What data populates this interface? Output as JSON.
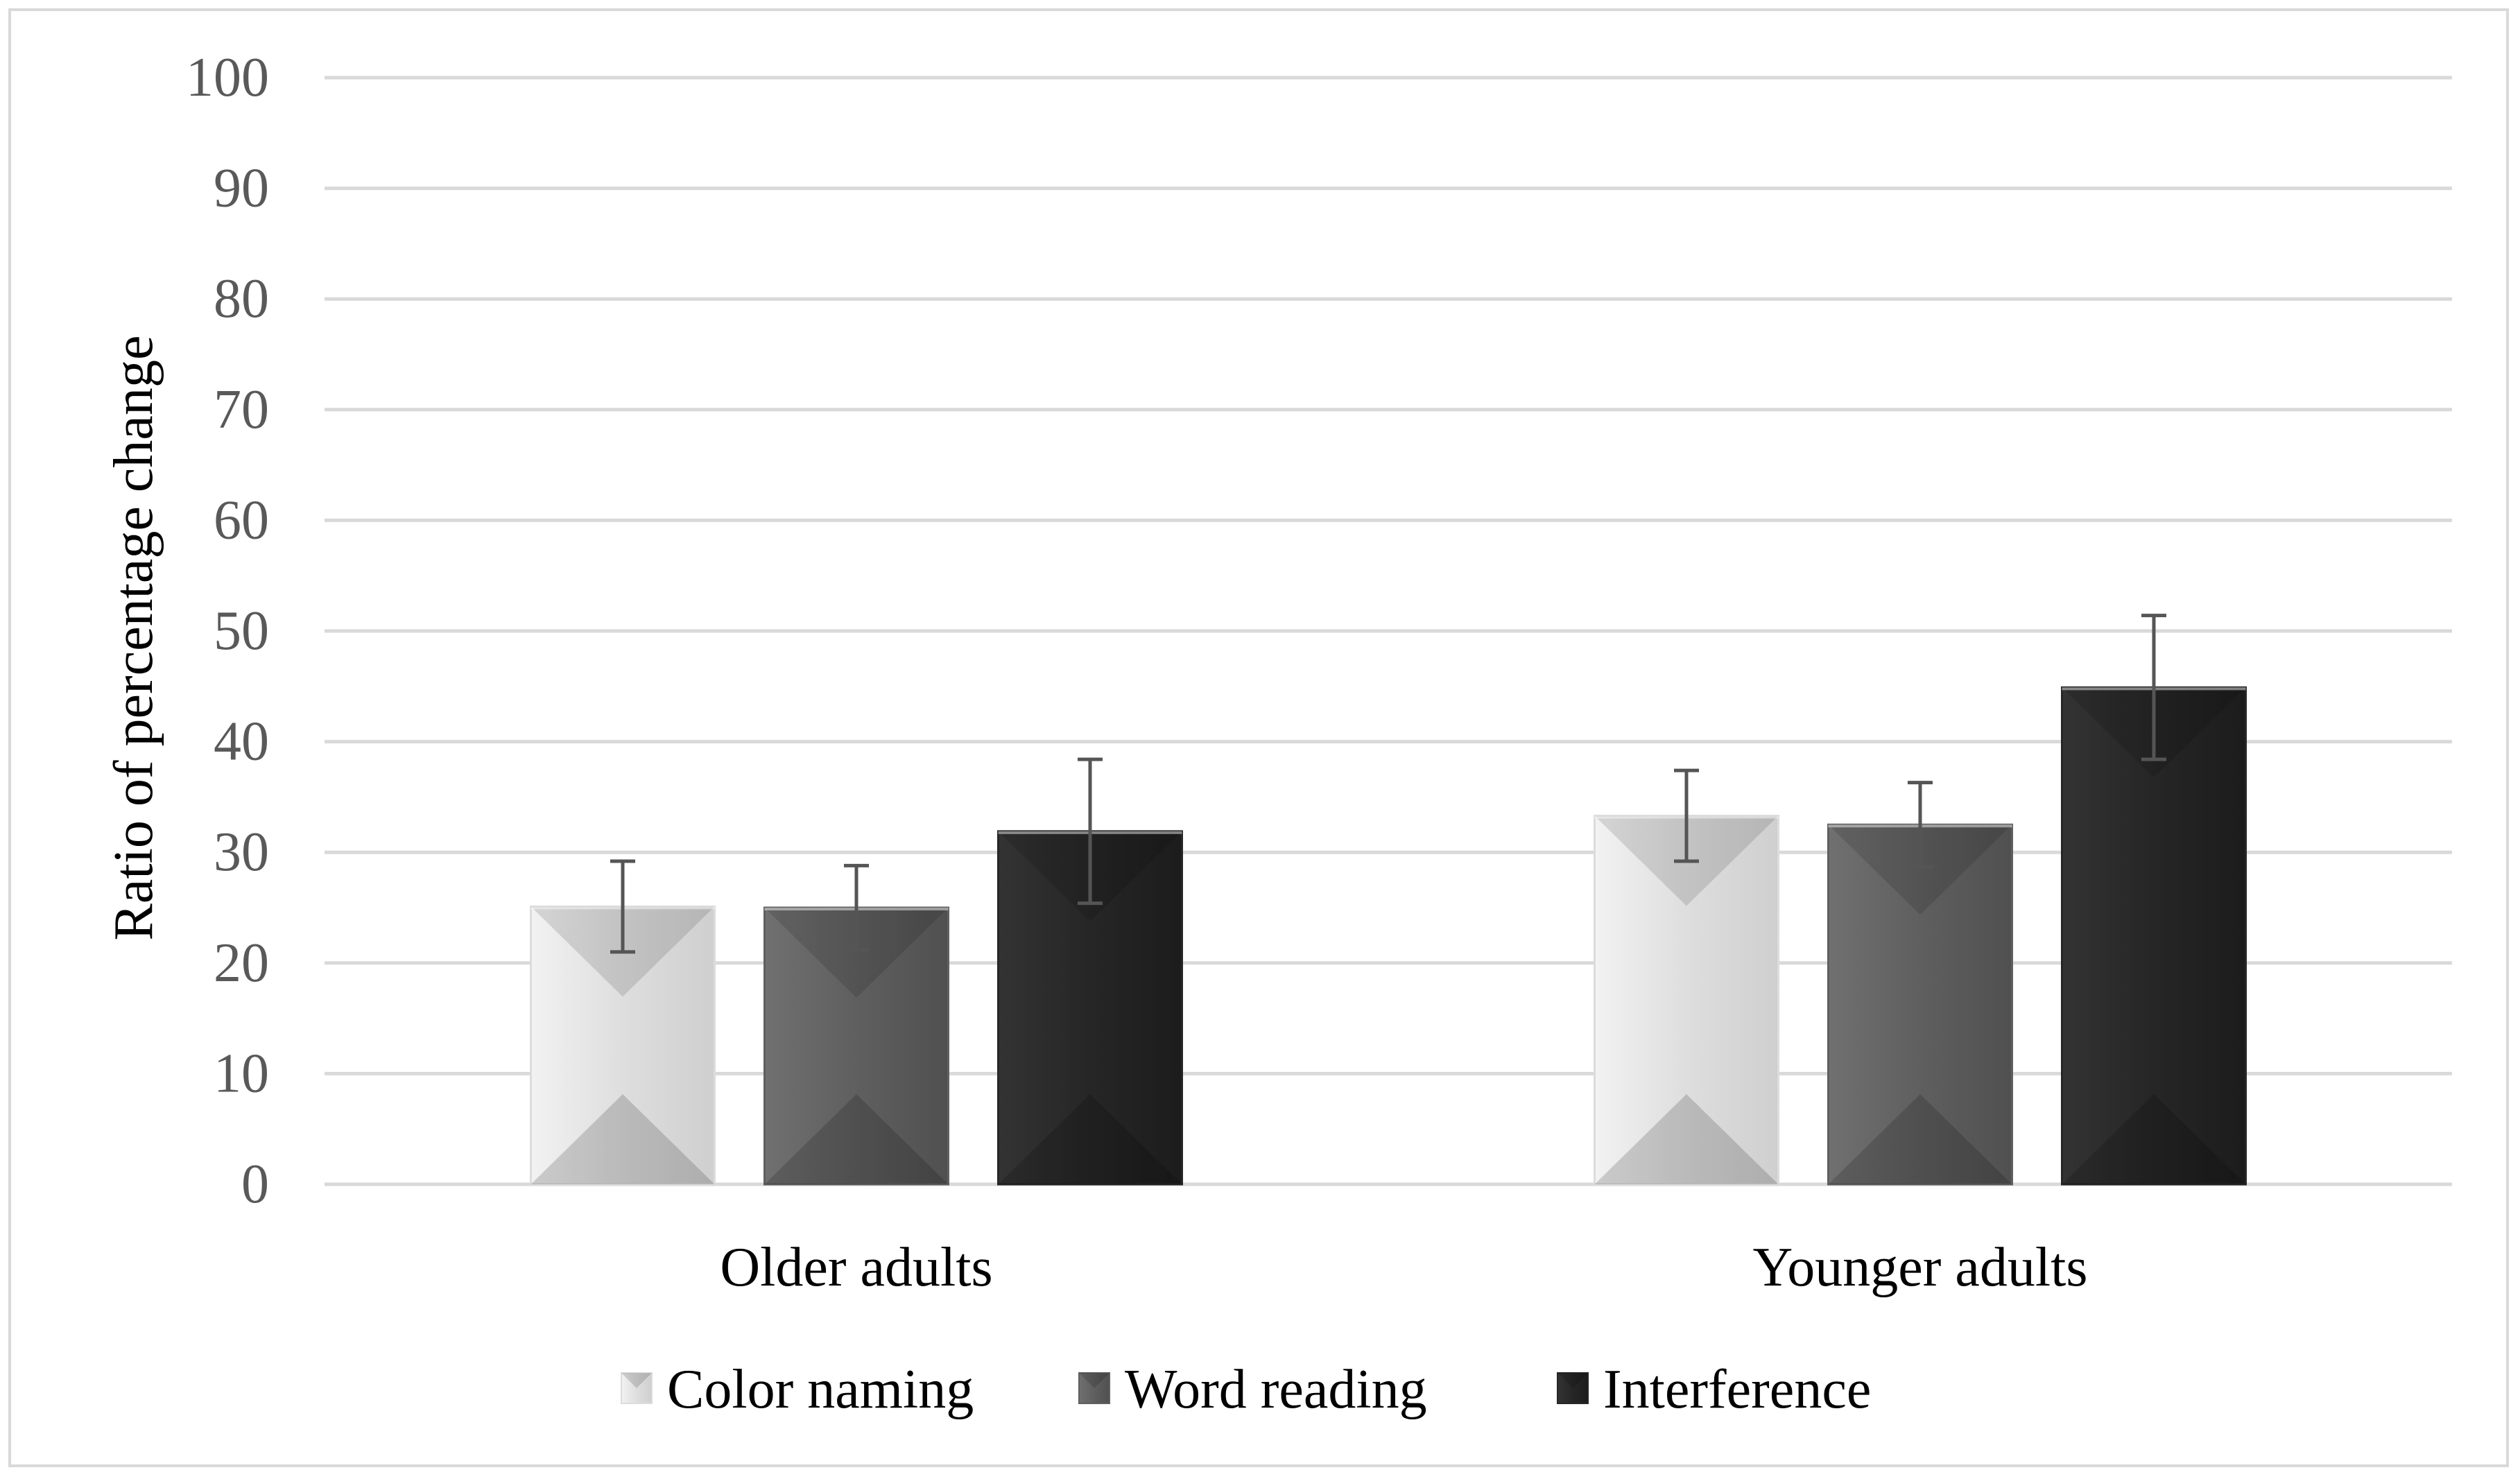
{
  "chart_data": {
    "type": "bar",
    "title": "",
    "xlabel": "",
    "ylabel": "Ratio of percentage change",
    "ylim": [
      0,
      100
    ],
    "yticks": [
      0,
      10,
      20,
      30,
      40,
      50,
      60,
      70,
      80,
      90,
      100
    ],
    "grid": true,
    "legend_position": "bottom",
    "categories": [
      "Older adults",
      "Younger adults"
    ],
    "series": [
      {
        "name": "Color naming",
        "color": "#dcdcdc",
        "values": [
          25.1,
          33.3
        ],
        "error": [
          4.1,
          4.1
        ]
      },
      {
        "name": "Word reading",
        "color": "#5f5f5f",
        "values": [
          25.0,
          32.5
        ],
        "error": [
          3.8,
          3.8
        ]
      },
      {
        "name": "Interference",
        "color": "#262626",
        "values": [
          31.9,
          44.9
        ],
        "error": [
          6.5,
          6.5
        ]
      }
    ]
  }
}
